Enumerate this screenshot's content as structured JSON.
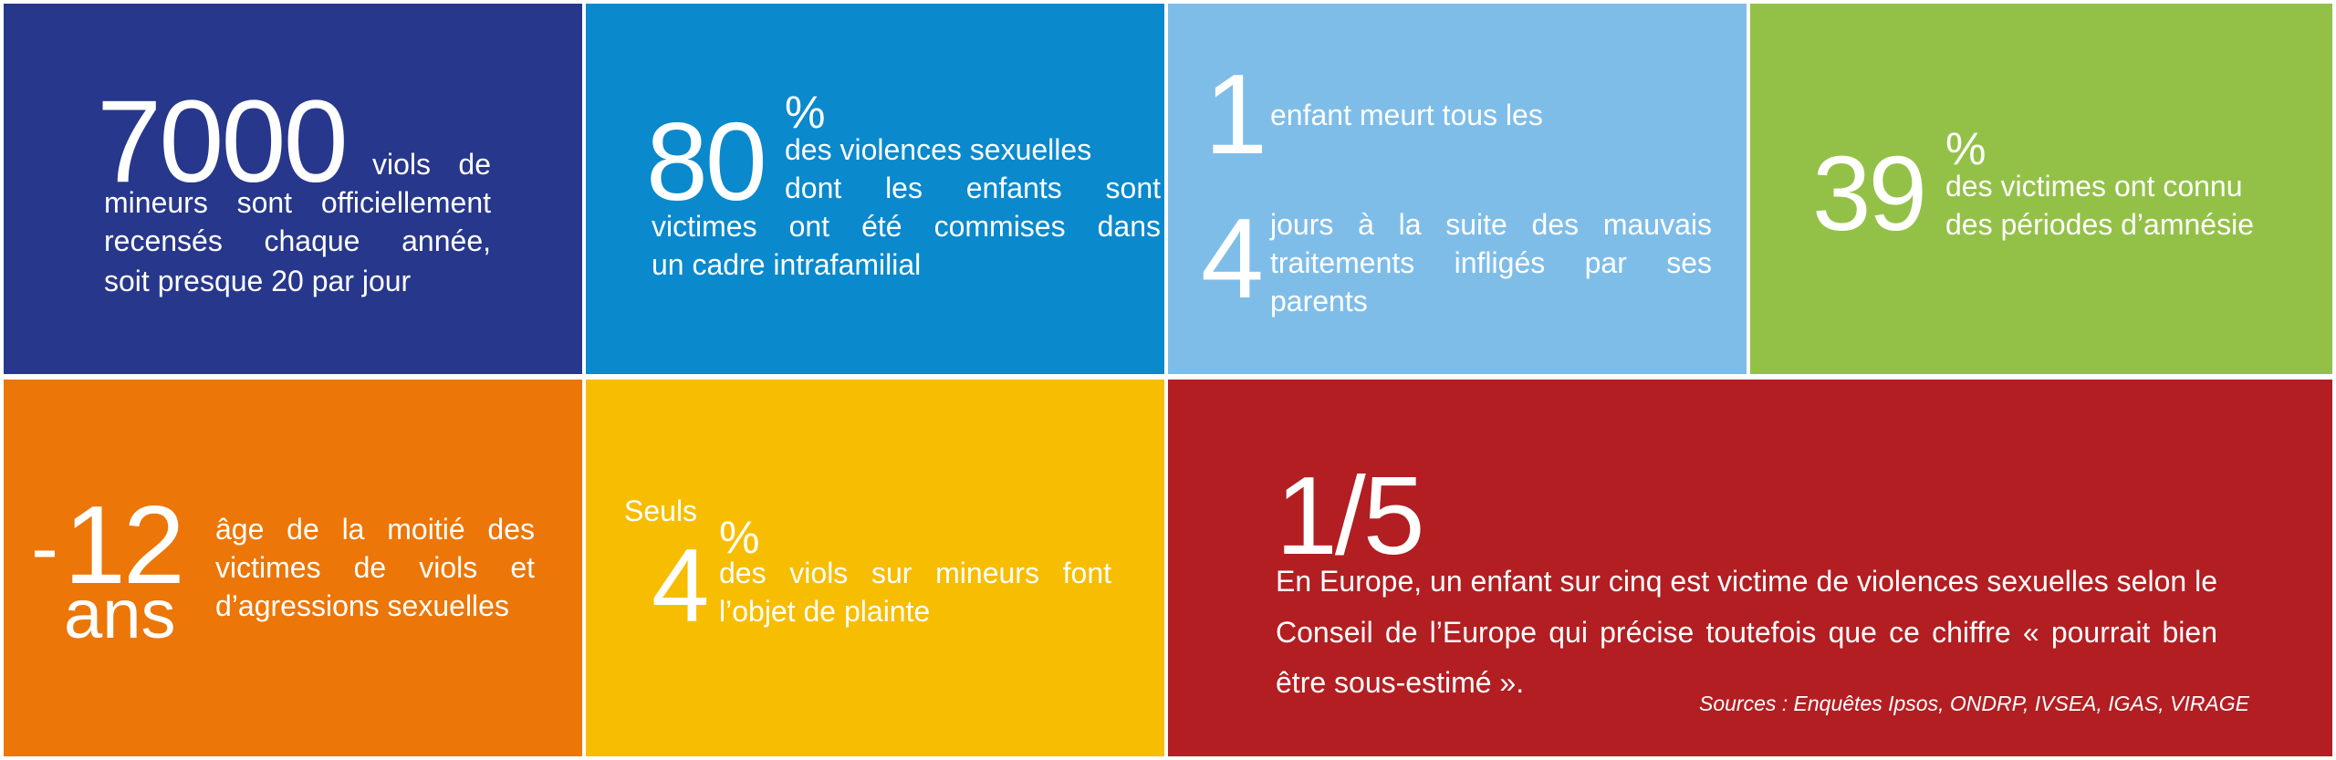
{
  "tiles": {
    "t1": {
      "number": "7000",
      "line1": "viols de",
      "lines": [
        "mineurs sont officiellement",
        "recensés chaque année,",
        "soit presque 20 par jour"
      ],
      "color": "#27378b"
    },
    "t2": {
      "number": "80",
      "percent": "%",
      "line1": "des violences sexuelles",
      "line2": "dont les enfants sont",
      "line3": "victimes ont été commises dans",
      "line4": "un cadre intrafamilial",
      "color": "#0a89cc"
    },
    "t3": {
      "number1": "1",
      "text1": "enfant meurt tous les",
      "number2": "4",
      "line1": "jours à la suite des mauvais",
      "line2": "traitements infligés par ses",
      "line3": "parents",
      "color": "#7fbde9"
    },
    "t4": {
      "number": "39",
      "percent": "%",
      "line1": "des victimes ont connu",
      "line2": "des périodes d’amnésie",
      "color": "#93c148"
    },
    "t5": {
      "prefix": "-",
      "number": "12",
      "unit": "ans",
      "line1": "âge de la moitié des",
      "line2": "victimes de viols et",
      "line3": "d’agressions sexuelles",
      "color": "#ec7607"
    },
    "t6": {
      "pre": "Seuls",
      "number": "4",
      "percent": "%",
      "line1": "des viols sur mineurs font",
      "line2": "l’objet de plainte",
      "color": "#f7bd00"
    },
    "t7": {
      "number": "1/5",
      "body": "En Europe, un enfant sur cinq est victime de violences sexuelles selon le Conseil de l’Europe qui précise toutefois que ce chiffre « pourrait bien être sous-estimé ».",
      "sources": "Sources : Enquêtes Ipsos, ONDRP, IVSEA, IGAS, VIRAGE",
      "color": "#b21e22"
    }
  }
}
